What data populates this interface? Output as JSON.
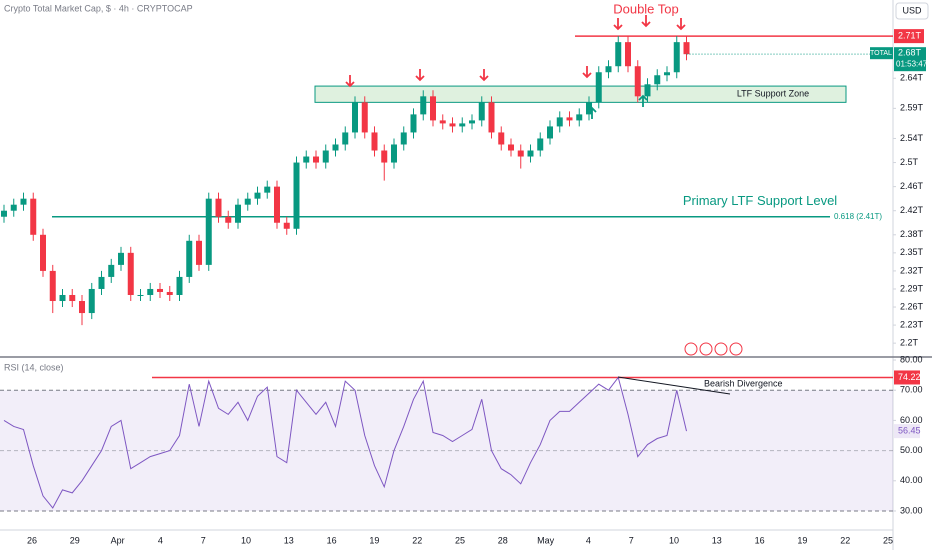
{
  "chart_data": {
    "type": "candlestick",
    "title": "Crypto Total Market Cap, $ · 4h · CRYPTOCAP",
    "currency": "USD",
    "up_color": "#089981",
    "down_color": "#f23645",
    "open": [
      2.41,
      2.42,
      2.43,
      2.44,
      2.38,
      2.32,
      2.27,
      2.28,
      2.27,
      2.25,
      2.29,
      2.31,
      2.33,
      2.35,
      2.28,
      2.28,
      2.29,
      2.285,
      2.28,
      2.31,
      2.37,
      2.33,
      2.44,
      2.41,
      2.4,
      2.43,
      2.44,
      2.45,
      2.46,
      2.4,
      2.39,
      2.5,
      2.51,
      2.5,
      2.52,
      2.53,
      2.55,
      2.6,
      2.55,
      2.52,
      2.5,
      2.53,
      2.55,
      2.58,
      2.61,
      2.57,
      2.565,
      2.56,
      2.565,
      2.57,
      2.6,
      2.55,
      2.53,
      2.52,
      2.51,
      2.52,
      2.54,
      2.56,
      2.575,
      2.57,
      2.58,
      2.6,
      2.65,
      2.66,
      2.7,
      2.66,
      2.61,
      2.63,
      2.645,
      2.65,
      2.7
    ],
    "high": [
      2.43,
      2.44,
      2.45,
      2.45,
      2.39,
      2.33,
      2.29,
      2.29,
      2.28,
      2.3,
      2.32,
      2.34,
      2.36,
      2.36,
      2.29,
      2.3,
      2.3,
      2.295,
      2.32,
      2.38,
      2.38,
      2.45,
      2.45,
      2.42,
      2.44,
      2.45,
      2.46,
      2.47,
      2.47,
      2.41,
      2.51,
      2.52,
      2.52,
      2.53,
      2.54,
      2.56,
      2.61,
      2.61,
      2.56,
      2.53,
      2.54,
      2.56,
      2.59,
      2.62,
      2.62,
      2.58,
      2.575,
      2.575,
      2.58,
      2.61,
      2.61,
      2.56,
      2.54,
      2.53,
      2.53,
      2.55,
      2.57,
      2.585,
      2.585,
      2.59,
      2.61,
      2.66,
      2.67,
      2.71,
      2.71,
      2.67,
      2.64,
      2.655,
      2.66,
      2.71,
      2.71
    ],
    "low": [
      2.4,
      2.41,
      2.42,
      2.37,
      2.31,
      2.25,
      2.26,
      2.26,
      2.23,
      2.24,
      2.28,
      2.3,
      2.32,
      2.27,
      2.27,
      2.27,
      2.275,
      2.27,
      2.27,
      2.3,
      2.32,
      2.32,
      2.4,
      2.39,
      2.39,
      2.42,
      2.43,
      2.44,
      2.39,
      2.38,
      2.38,
      2.49,
      2.49,
      2.49,
      2.51,
      2.52,
      2.54,
      2.54,
      2.51,
      2.47,
      2.49,
      2.52,
      2.54,
      2.57,
      2.56,
      2.555,
      2.55,
      2.55,
      2.555,
      2.56,
      2.54,
      2.52,
      2.51,
      2.49,
      2.5,
      2.51,
      2.53,
      2.55,
      2.56,
      2.56,
      2.57,
      2.59,
      2.64,
      2.65,
      2.65,
      2.6,
      2.6,
      2.62,
      2.635,
      2.64,
      2.67
    ],
    "close": [
      2.42,
      2.43,
      2.44,
      2.38,
      2.32,
      2.27,
      2.28,
      2.27,
      2.25,
      2.29,
      2.31,
      2.33,
      2.35,
      2.28,
      2.28,
      2.29,
      2.285,
      2.28,
      2.31,
      2.37,
      2.33,
      2.44,
      2.41,
      2.4,
      2.43,
      2.44,
      2.45,
      2.46,
      2.4,
      2.39,
      2.5,
      2.51,
      2.5,
      2.52,
      2.53,
      2.55,
      2.6,
      2.55,
      2.52,
      2.5,
      2.53,
      2.55,
      2.58,
      2.61,
      2.57,
      2.565,
      2.56,
      2.565,
      2.57,
      2.6,
      2.55,
      2.53,
      2.52,
      2.51,
      2.52,
      2.54,
      2.56,
      2.575,
      2.57,
      2.58,
      2.6,
      2.65,
      2.66,
      2.7,
      2.66,
      2.61,
      2.63,
      2.645,
      2.65,
      2.7,
      2.68
    ],
    "ylim": [
      2.177,
      2.77
    ],
    "yticks": [
      {
        "value": 2.2,
        "label": "2.2T"
      },
      {
        "value": 2.23,
        "label": "2.23T"
      },
      {
        "value": 2.26,
        "label": "2.26T"
      },
      {
        "value": 2.29,
        "label": "2.29T"
      },
      {
        "value": 2.32,
        "label": "2.32T"
      },
      {
        "value": 2.35,
        "label": "2.35T"
      },
      {
        "value": 2.38,
        "label": "2.38T"
      },
      {
        "value": 2.42,
        "label": "2.42T"
      },
      {
        "value": 2.46,
        "label": "2.46T"
      },
      {
        "value": 2.5,
        "label": "2.5T"
      },
      {
        "value": 2.54,
        "label": "2.54T"
      },
      {
        "value": 2.59,
        "label": "2.59T"
      },
      {
        "value": 2.64,
        "label": "2.64T"
      }
    ],
    "x_labels": [
      "26",
      "29",
      "Apr",
      "4",
      "7",
      "10",
      "13",
      "16",
      "19",
      "22",
      "25",
      "28",
      "May",
      "4",
      "7",
      "10",
      "13",
      "16",
      "19",
      "22",
      "25"
    ],
    "last_price": {
      "symbol": "TOTAL",
      "value": 2.68,
      "label": "2.68T",
      "countdown": "01:53:47"
    },
    "resistance": {
      "title": "Double Top",
      "value": 2.71,
      "label": "2.71T",
      "color": "#f23645"
    },
    "support_zone": {
      "label": "LTF Support Zone",
      "low": 2.6,
      "high": 2.627
    },
    "support_level": {
      "title": "Primary LTF Support Level",
      "value": 2.41,
      "label": "0.618 (2.41T)",
      "color": "#089981"
    },
    "rsi": {
      "title": "RSI (14, close)",
      "color": "#7e57c2",
      "values": [
        60,
        58,
        57,
        45,
        35,
        31,
        37,
        36,
        40,
        45,
        50,
        58,
        60,
        44,
        46,
        48,
        49,
        50,
        55,
        72,
        58,
        73,
        64,
        62,
        66,
        60,
        68,
        71,
        48,
        46,
        70,
        66,
        62,
        66,
        58,
        73,
        70,
        55,
        45,
        38,
        50,
        58,
        67,
        73,
        56,
        55,
        53,
        55,
        57,
        67,
        50,
        44,
        42,
        39,
        46,
        52,
        60,
        63,
        63,
        66,
        69,
        72,
        70,
        74.22,
        62,
        48,
        52,
        54,
        55,
        70,
        56.45
      ],
      "ylim": [
        23.7,
        81
      ],
      "yticks": [
        {
          "value": 30,
          "label": "30.00"
        },
        {
          "value": 40,
          "label": "40.00"
        },
        {
          "value": 50,
          "label": "50.00"
        },
        {
          "value": 60,
          "label": "60.00"
        },
        {
          "value": 70,
          "label": "70.00"
        },
        {
          "value": 80,
          "label": "80.00"
        }
      ],
      "band": [
        30,
        70
      ],
      "resistance": {
        "value": 74.22,
        "label": "74.22"
      },
      "last": {
        "value": 56.45,
        "label": "56.45"
      },
      "divergence_label": "Bearish Divergence"
    }
  }
}
